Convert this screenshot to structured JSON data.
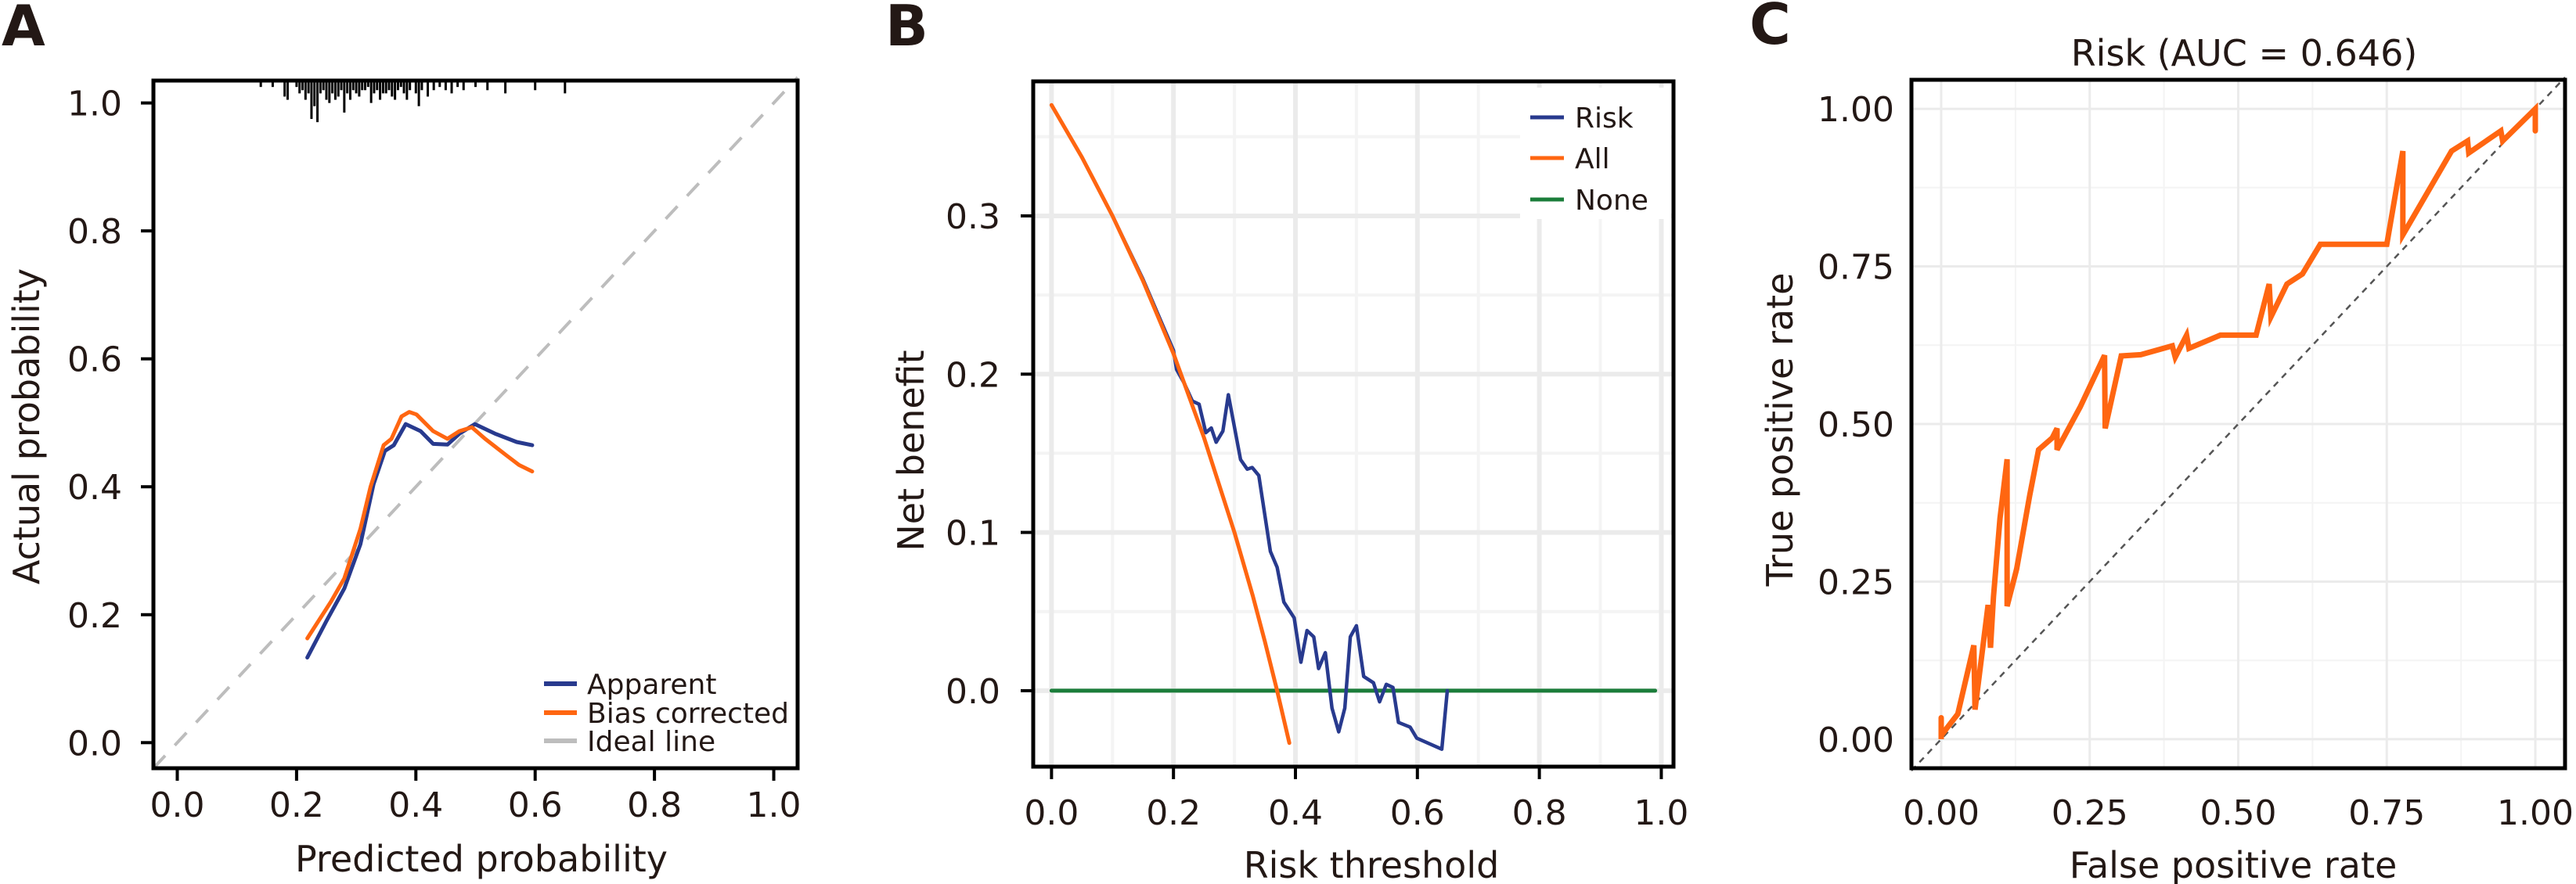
{
  "colors": {
    "apparent": "#283a8e",
    "bias_corrected": "#ff6611",
    "ideal": "#bdbdbd",
    "risk": "#283a8e",
    "all": "#ff6611",
    "none": "#1b7d3a",
    "roc": "#ff6611",
    "diagonal": "#555555",
    "grid": "#ebebeb",
    "grid_minor": "#f4f4f4",
    "axis": "#000000",
    "text": "#231815"
  },
  "chart_data": [
    {
      "panel": "A",
      "type": "line",
      "title": "",
      "xlabel": "Predicted probability",
      "ylabel": "Actual probability",
      "xlim": [
        -0.04,
        1.04
      ],
      "ylim": [
        -0.04,
        1.035
      ],
      "xticks": [
        "0.0",
        "0.2",
        "0.4",
        "0.6",
        "0.8",
        "1.0"
      ],
      "xtick_values": [
        0,
        0.2,
        0.4,
        0.6,
        0.8,
        1.0
      ],
      "yticks": [
        "0.0",
        "0.2",
        "0.4",
        "0.6",
        "0.8",
        "1.0"
      ],
      "ytick_values": [
        0,
        0.2,
        0.4,
        0.6,
        0.8,
        1.0
      ],
      "grid": false,
      "legend_position": "bottom-right",
      "rug_top": [
        0.14,
        0.16,
        0.18,
        0.185,
        0.2,
        0.205,
        0.21,
        0.215,
        0.22,
        0.225,
        0.23,
        0.235,
        0.24,
        0.245,
        0.25,
        0.255,
        0.26,
        0.265,
        0.27,
        0.275,
        0.28,
        0.285,
        0.29,
        0.295,
        0.3,
        0.305,
        0.31,
        0.315,
        0.32,
        0.325,
        0.33,
        0.335,
        0.34,
        0.345,
        0.35,
        0.355,
        0.36,
        0.365,
        0.37,
        0.375,
        0.38,
        0.385,
        0.39,
        0.4,
        0.405,
        0.41,
        0.42,
        0.43,
        0.44,
        0.45,
        0.46,
        0.47,
        0.48,
        0.5,
        0.52,
        0.55,
        0.6,
        0.65
      ],
      "rug_lengths": [
        0.01,
        0.01,
        0.025,
        0.03,
        0.01,
        0.02,
        0.015,
        0.03,
        0.02,
        0.06,
        0.04,
        0.065,
        0.02,
        0.015,
        0.03,
        0.035,
        0.02,
        0.03,
        0.025,
        0.015,
        0.05,
        0.02,
        0.03,
        0.015,
        0.02,
        0.025,
        0.015,
        0.015,
        0.01,
        0.035,
        0.02,
        0.015,
        0.03,
        0.02,
        0.02,
        0.015,
        0.025,
        0.03,
        0.015,
        0.01,
        0.02,
        0.03,
        0.015,
        0.02,
        0.04,
        0.015,
        0.025,
        0.015,
        0.01,
        0.015,
        0.02,
        0.01,
        0.015,
        0.01,
        0.015,
        0.02,
        0.015,
        0.02
      ],
      "series": [
        {
          "name": "Apparent",
          "x": [
            0.218,
            0.25,
            0.28,
            0.307,
            0.329,
            0.348,
            0.363,
            0.383,
            0.408,
            0.429,
            0.453,
            0.473,
            0.499,
            0.533,
            0.569,
            0.595
          ],
          "y": [
            0.133,
            0.19,
            0.241,
            0.31,
            0.404,
            0.456,
            0.465,
            0.498,
            0.487,
            0.467,
            0.466,
            0.483,
            0.498,
            0.483,
            0.47,
            0.465
          ]
        },
        {
          "name": "Bias corrected",
          "x": [
            0.218,
            0.258,
            0.28,
            0.307,
            0.324,
            0.346,
            0.359,
            0.376,
            0.389,
            0.401,
            0.429,
            0.453,
            0.473,
            0.494,
            0.516,
            0.552,
            0.573,
            0.595
          ],
          "y": [
            0.163,
            0.221,
            0.257,
            0.334,
            0.4,
            0.465,
            0.475,
            0.51,
            0.517,
            0.513,
            0.487,
            0.475,
            0.487,
            0.493,
            0.475,
            0.449,
            0.434,
            0.424
          ]
        },
        {
          "name": "Ideal line",
          "x": [
            -0.04,
            1.04
          ],
          "y": [
            -0.04,
            1.04
          ]
        }
      ]
    },
    {
      "panel": "B",
      "type": "line",
      "title": "",
      "xlabel": "Risk threshold",
      "ylabel": "Net benefit",
      "xlim": [
        -0.03,
        1.02
      ],
      "ylim": [
        -0.048,
        0.385
      ],
      "xticks": [
        "0.0",
        "0.2",
        "0.4",
        "0.6",
        "0.8",
        "1.0"
      ],
      "xtick_values": [
        0,
        0.2,
        0.4,
        0.6,
        0.8,
        1.0
      ],
      "yticks": [
        "0.0",
        "0.1",
        "0.2",
        "0.3"
      ],
      "ytick_values": [
        0,
        0.1,
        0.2,
        0.3
      ],
      "grid": true,
      "legend_position": "top-right",
      "series": [
        {
          "name": "Risk",
          "x": [
            0.0,
            0.05,
            0.1,
            0.15,
            0.18,
            0.2,
            0.205,
            0.218,
            0.231,
            0.242,
            0.253,
            0.262,
            0.27,
            0.281,
            0.29,
            0.31,
            0.321,
            0.329,
            0.34,
            0.359,
            0.37,
            0.381,
            0.398,
            0.409,
            0.419,
            0.43,
            0.438,
            0.449,
            0.46,
            0.471,
            0.481,
            0.49,
            0.5,
            0.512,
            0.528,
            0.538,
            0.549,
            0.56,
            0.569,
            0.588,
            0.599,
            0.64,
            0.649
          ],
          "y": [
            0.37,
            0.337,
            0.3,
            0.26,
            0.233,
            0.215,
            0.203,
            0.194,
            0.183,
            0.181,
            0.163,
            0.166,
            0.157,
            0.164,
            0.187,
            0.146,
            0.14,
            0.141,
            0.136,
            0.088,
            0.078,
            0.056,
            0.046,
            0.018,
            0.038,
            0.034,
            0.014,
            0.024,
            -0.011,
            -0.026,
            -0.011,
            0.034,
            0.041,
            0.009,
            0.005,
            -0.007,
            0.004,
            0.002,
            -0.02,
            -0.023,
            -0.03,
            -0.037,
            0.0
          ]
        },
        {
          "name": "All",
          "prevalence": 0.37,
          "x": [
            0.0,
            0.05,
            0.1,
            0.15,
            0.2,
            0.25,
            0.3,
            0.33,
            0.35,
            0.37,
            0.39
          ],
          "y": [
            0.37,
            0.337,
            0.3,
            0.259,
            0.213,
            0.16,
            0.1,
            0.06,
            0.031,
            0.0,
            -0.033
          ]
        },
        {
          "name": "None",
          "x": [
            0.0,
            0.99
          ],
          "y": [
            0.0,
            0.0
          ]
        }
      ]
    },
    {
      "panel": "C",
      "type": "line",
      "title": "Risk (AUC = 0.646)",
      "xlabel": "False positive rate",
      "ylabel": "True positive rate",
      "xlim": [
        -0.05,
        1.05
      ],
      "ylim": [
        -0.046,
        1.046
      ],
      "xticks": [
        "0.00",
        "0.25",
        "0.50",
        "0.75",
        "1.00"
      ],
      "xtick_values": [
        0,
        0.25,
        0.5,
        0.75,
        1.0
      ],
      "yticks": [
        "0.00",
        "0.25",
        "0.50",
        "0.75",
        "1.00"
      ],
      "ytick_values": [
        0,
        0.25,
        0.5,
        0.75,
        1.0
      ],
      "grid": true,
      "auc": 0.646,
      "series": [
        {
          "name": "Risk",
          "x": [
            0.0,
            0.0,
            0.0,
            0.028,
            0.055,
            0.057,
            0.079,
            0.083,
            0.088,
            0.099,
            0.111,
            0.111,
            0.127,
            0.149,
            0.164,
            0.187,
            0.195,
            0.195,
            0.234,
            0.275,
            0.276,
            0.303,
            0.336,
            0.389,
            0.394,
            0.413,
            0.417,
            0.47,
            0.53,
            0.552,
            0.555,
            0.582,
            0.608,
            0.638,
            0.75,
            0.777,
            0.777,
            0.859,
            0.886,
            0.888,
            0.942,
            0.945,
            1.0,
            1.0
          ],
          "y": [
            0.034,
            0.0,
            0.006,
            0.04,
            0.149,
            0.047,
            0.213,
            0.145,
            0.226,
            0.35,
            0.444,
            0.211,
            0.27,
            0.387,
            0.459,
            0.478,
            0.493,
            0.459,
            0.527,
            0.609,
            0.493,
            0.608,
            0.61,
            0.624,
            0.606,
            0.641,
            0.62,
            0.641,
            0.641,
            0.722,
            0.67,
            0.722,
            0.738,
            0.785,
            0.785,
            0.933,
            0.8,
            0.933,
            0.949,
            0.93,
            0.965,
            0.949,
            1.0,
            0.965
          ]
        },
        {
          "name": "Reference",
          "x": [
            -0.05,
            1.05
          ],
          "y": [
            -0.05,
            1.05
          ]
        }
      ]
    }
  ],
  "panels": {
    "A": {
      "letter": "A",
      "legend": [
        "Apparent",
        "Bias corrected",
        "Ideal line"
      ]
    },
    "B": {
      "letter": "B",
      "legend": [
        "Risk",
        "All",
        "None"
      ]
    },
    "C": {
      "letter": "C"
    }
  }
}
